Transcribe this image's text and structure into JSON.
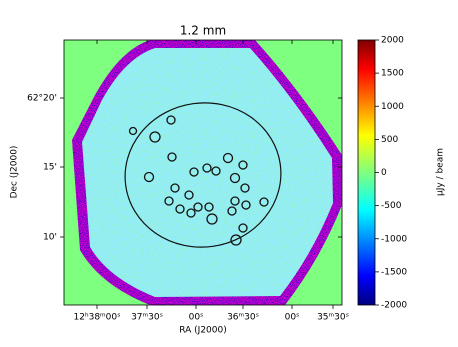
{
  "chart_data": {
    "type": "image",
    "title": "1.2 mm",
    "xlabel": "RA (J2000)",
    "ylabel": "Dec (J2000)",
    "xtick_labels": [
      "12ʰ38ᵐ00ˢ",
      "37ᵐ30ˢ",
      "00ˢ",
      "36ᵐ30ˢ",
      "00ˢ",
      "35ᵐ30ˢ"
    ],
    "ytick_labels": [
      "62°20'",
      "15'",
      "10'"
    ],
    "colorbar": {
      "label": "μJy / beam",
      "colormap": "jet",
      "clim": [
        -2000,
        2000
      ],
      "ticks": [
        -2000,
        -1500,
        -1000,
        -500,
        0,
        500,
        1000,
        1500,
        2000
      ]
    }
  }
}
